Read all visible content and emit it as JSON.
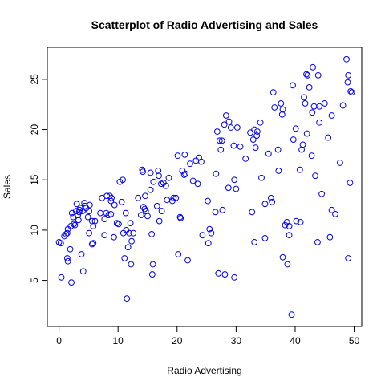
{
  "chart_data": {
    "type": "scatter",
    "title": "Scatterplot of Radio Advertising and Sales",
    "xlabel": "Radio Advertising",
    "ylabel": "Sales",
    "xlim": [
      -1.98,
      51.28
    ],
    "ylim": [
      0.42,
      28.18
    ],
    "xticks": [
      0,
      10,
      20,
      30,
      40,
      50
    ],
    "yticks": [
      5,
      10,
      15,
      20,
      25
    ],
    "grid": false,
    "point_color": "#0000ff",
    "marker": "open-circle",
    "points": [
      [
        0.0,
        8.8
      ],
      [
        0.3,
        8.7
      ],
      [
        0.4,
        5.3
      ],
      [
        0.9,
        9.4
      ],
      [
        1.2,
        9.6
      ],
      [
        1.4,
        7.2
      ],
      [
        1.5,
        6.9
      ],
      [
        1.4,
        9.7
      ],
      [
        1.5,
        10.1
      ],
      [
        1.9,
        8.1
      ],
      [
        2.0,
        10.4
      ],
      [
        2.1,
        4.8
      ],
      [
        2.2,
        11.7
      ],
      [
        2.4,
        11.3
      ],
      [
        2.5,
        10.6
      ],
      [
        2.7,
        10.5
      ],
      [
        2.9,
        11.9
      ],
      [
        3.0,
        12.6
      ],
      [
        3.2,
        11.5
      ],
      [
        3.3,
        11.0
      ],
      [
        3.4,
        11.8
      ],
      [
        3.5,
        12.0
      ],
      [
        3.6,
        12.2
      ],
      [
        3.8,
        7.6
      ],
      [
        4.0,
        11.9
      ],
      [
        4.1,
        5.9
      ],
      [
        4.3,
        12.7
      ],
      [
        4.4,
        12.4
      ],
      [
        4.6,
        12.2
      ],
      [
        4.9,
        11.3
      ],
      [
        5.1,
        9.7
      ],
      [
        5.1,
        11.9
      ],
      [
        5.2,
        12.5
      ],
      [
        5.6,
        10.9
      ],
      [
        5.6,
        8.6
      ],
      [
        5.8,
        8.7
      ],
      [
        5.8,
        10.4
      ],
      [
        6.1,
        10.9
      ],
      [
        7.0,
        11.7
      ],
      [
        7.3,
        13.2
      ],
      [
        7.7,
        11.1
      ],
      [
        7.7,
        9.5
      ],
      [
        8.0,
        11.7
      ],
      [
        8.1,
        13.4
      ],
      [
        8.4,
        11.5
      ],
      [
        8.6,
        13.4
      ],
      [
        8.8,
        11.6
      ],
      [
        8.8,
        12.9
      ],
      [
        8.9,
        13.2
      ],
      [
        9.3,
        9.3
      ],
      [
        9.4,
        12.5
      ],
      [
        9.8,
        10.7
      ],
      [
        10.1,
        10.6
      ],
      [
        10.3,
        14.8
      ],
      [
        10.6,
        12.8
      ],
      [
        10.8,
        15.0
      ],
      [
        10.9,
        9.7
      ],
      [
        11.1,
        7.2
      ],
      [
        11.3,
        11.7
      ],
      [
        11.4,
        10.0
      ],
      [
        11.5,
        3.2
      ],
      [
        11.7,
        8.3
      ],
      [
        11.9,
        9.7
      ],
      [
        12.1,
        10.7
      ],
      [
        12.2,
        6.6
      ],
      [
        12.3,
        8.9
      ],
      [
        12.6,
        9.7
      ],
      [
        13.4,
        13.2
      ],
      [
        13.9,
        11.5
      ],
      [
        14.1,
        16.0
      ],
      [
        14.2,
        15.8
      ],
      [
        14.3,
        12.3
      ],
      [
        14.5,
        12.1
      ],
      [
        14.6,
        13.4
      ],
      [
        14.7,
        11.9
      ],
      [
        15.0,
        11.4
      ],
      [
        15.5,
        14.0
      ],
      [
        15.5,
        15.7
      ],
      [
        15.7,
        9.6
      ],
      [
        15.8,
        5.6
      ],
      [
        15.9,
        6.6
      ],
      [
        16.0,
        14.8
      ],
      [
        16.6,
        12.4
      ],
      [
        16.8,
        15.9
      ],
      [
        16.9,
        15.4
      ],
      [
        17.0,
        10.9
      ],
      [
        17.3,
        14.6
      ],
      [
        17.4,
        11.9
      ],
      [
        17.7,
        14.7
      ],
      [
        18.1,
        14.4
      ],
      [
        18.3,
        13.0
      ],
      [
        18.6,
        15.2
      ],
      [
        19.2,
        12.9
      ],
      [
        19.4,
        13.2
      ],
      [
        19.8,
        13.2
      ],
      [
        20.1,
        17.4
      ],
      [
        20.2,
        7.6
      ],
      [
        20.5,
        11.3
      ],
      [
        20.6,
        11.2
      ],
      [
        20.9,
        15.9
      ],
      [
        21.2,
        15.5
      ],
      [
        21.3,
        17.5
      ],
      [
        21.4,
        15.6
      ],
      [
        21.8,
        7.0
      ],
      [
        22.2,
        16.6
      ],
      [
        22.7,
        14.9
      ],
      [
        23.2,
        16.9
      ],
      [
        23.5,
        14.6
      ],
      [
        23.7,
        17.2
      ],
      [
        24.1,
        16.8
      ],
      [
        24.3,
        9.5
      ],
      [
        25.2,
        12.9
      ],
      [
        25.3,
        8.7
      ],
      [
        25.5,
        10.1
      ],
      [
        25.8,
        9.7
      ],
      [
        26.5,
        11.8
      ],
      [
        26.6,
        15.6
      ],
      [
        26.8,
        19.8
      ],
      [
        27.0,
        5.7
      ],
      [
        27.2,
        18.9
      ],
      [
        27.4,
        18.0
      ],
      [
        27.6,
        18.9
      ],
      [
        27.7,
        12.0
      ],
      [
        28.0,
        20.5
      ],
      [
        28.1,
        5.6
      ],
      [
        28.3,
        21.4
      ],
      [
        28.7,
        14.2
      ],
      [
        28.8,
        20.8
      ],
      [
        29.1,
        20.2
      ],
      [
        29.6,
        18.4
      ],
      [
        29.7,
        15.0
      ],
      [
        29.7,
        5.3
      ],
      [
        30.0,
        14.1
      ],
      [
        30.2,
        20.2
      ],
      [
        30.7,
        18.3
      ],
      [
        31.6,
        17.1
      ],
      [
        32.4,
        19.7
      ],
      [
        32.7,
        11.8
      ],
      [
        32.9,
        19.0
      ],
      [
        33.1,
        8.8
      ],
      [
        33.1,
        20.0
      ],
      [
        33.3,
        18.2
      ],
      [
        33.5,
        19.4
      ],
      [
        33.6,
        19.8
      ],
      [
        34.1,
        20.7
      ],
      [
        34.3,
        15.2
      ],
      [
        34.9,
        12.6
      ],
      [
        34.9,
        9.2
      ],
      [
        35.5,
        17.6
      ],
      [
        35.9,
        13.2
      ],
      [
        36.1,
        12.8
      ],
      [
        36.3,
        23.7
      ],
      [
        36.5,
        22.2
      ],
      [
        37.1,
        18.0
      ],
      [
        37.2,
        15.9
      ],
      [
        37.6,
        22.6
      ],
      [
        37.8,
        21.5
      ],
      [
        37.9,
        22.0
      ],
      [
        37.9,
        7.3
      ],
      [
        38.3,
        10.5
      ],
      [
        38.6,
        10.8
      ],
      [
        38.7,
        6.6
      ],
      [
        39.0,
        9.5
      ],
      [
        39.0,
        10.4
      ],
      [
        39.4,
        1.6
      ],
      [
        39.6,
        24.4
      ],
      [
        39.7,
        19.0
      ],
      [
        40.1,
        20.1
      ],
      [
        40.2,
        10.9
      ],
      [
        40.8,
        16.0
      ],
      [
        40.9,
        10.8
      ],
      [
        41.1,
        18.0
      ],
      [
        41.3,
        18.5
      ],
      [
        41.5,
        23.2
      ],
      [
        41.7,
        22.6
      ],
      [
        41.9,
        25.5
      ],
      [
        42.0,
        19.6
      ],
      [
        42.1,
        25.4
      ],
      [
        42.4,
        24.2
      ],
      [
        42.8,
        17.4
      ],
      [
        42.9,
        21.7
      ],
      [
        43.0,
        26.2
      ],
      [
        43.2,
        22.3
      ],
      [
        43.4,
        15.4
      ],
      [
        43.8,
        8.8
      ],
      [
        43.9,
        25.4
      ],
      [
        44.1,
        22.3
      ],
      [
        44.1,
        20.7
      ],
      [
        44.5,
        13.6
      ],
      [
        45.0,
        22.6
      ],
      [
        45.6,
        19.2
      ],
      [
        45.9,
        9.3
      ],
      [
        46.2,
        21.4
      ],
      [
        46.2,
        12.0
      ],
      [
        46.8,
        11.6
      ],
      [
        47.6,
        16.7
      ],
      [
        48.1,
        22.4
      ],
      [
        48.7,
        27.0
      ],
      [
        48.9,
        24.7
      ],
      [
        49.0,
        25.4
      ],
      [
        49.0,
        7.2
      ],
      [
        49.3,
        14.7
      ],
      [
        49.4,
        23.8
      ],
      [
        49.6,
        23.7
      ]
    ]
  }
}
